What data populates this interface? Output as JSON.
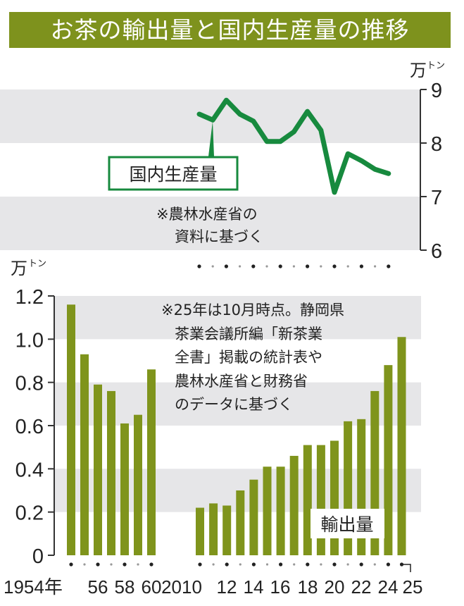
{
  "title": "お茶の輸出量と国内生産量の推移",
  "colors": {
    "title_band": "#7e921d",
    "bar": "#7f941c",
    "line": "#178a3e",
    "band": "#e6e6e8"
  },
  "chart_data": [
    {
      "type": "line",
      "title": "国内生産量",
      "series_label": "国内生産量",
      "unit": "万トン",
      "x": [
        2010,
        2011,
        2012,
        2013,
        2014,
        2015,
        2016,
        2017,
        2018,
        2019,
        2020,
        2021,
        2022,
        2023,
        2024
      ],
      "values": [
        8.54,
        8.43,
        8.8,
        8.54,
        8.41,
        8.03,
        8.03,
        8.21,
        8.59,
        8.24,
        7.08,
        7.8,
        7.67,
        7.51,
        7.43
      ],
      "ylim": [
        6,
        9
      ],
      "yticks": [
        "9",
        "8",
        "7",
        "6"
      ],
      "grid_bands": [
        [
          8,
          9
        ],
        [
          6,
          7
        ]
      ],
      "axis_position": "right",
      "note": [
        "※農林水産省の",
        "資料に基づく"
      ]
    },
    {
      "type": "bar",
      "title": "輸出量",
      "series_label": "輸出量",
      "unit": "万トン",
      "categories": [
        1954,
        1955,
        1956,
        1957,
        1958,
        1959,
        1960,
        2010,
        2011,
        2012,
        2013,
        2014,
        2015,
        2016,
        2017,
        2018,
        2019,
        2020,
        2021,
        2022,
        2023,
        2024,
        2025
      ],
      "values": [
        1.16,
        0.93,
        0.79,
        0.76,
        0.61,
        0.65,
        0.86,
        0.22,
        0.24,
        0.23,
        0.3,
        0.35,
        0.41,
        0.41,
        0.46,
        0.51,
        0.51,
        0.53,
        0.62,
        0.63,
        0.76,
        0.88,
        1.01
      ],
      "ylim": [
        0,
        1.2
      ],
      "yticks": [
        "0",
        "0.2",
        "0.4",
        "0.6",
        "0.8",
        "1.0",
        "1.2"
      ],
      "grid_bands": [
        [
          1.0,
          1.2
        ],
        [
          0.6,
          0.8
        ],
        [
          0.2,
          0.4
        ]
      ],
      "axis_position": "left",
      "xtick_labels": [
        "1954年",
        "56",
        "58",
        "60",
        "2010",
        "12",
        "14",
        "16",
        "18",
        "20",
        "22",
        "24",
        "25"
      ],
      "note": [
        "※25年は10月時点。静岡県",
        "茶業会議所編「新茶業",
        "全書」掲載の統計表や",
        "農林水産省と財務省",
        "のデータに基づく"
      ]
    }
  ],
  "units": {
    "main": "万",
    "small": "トン"
  }
}
